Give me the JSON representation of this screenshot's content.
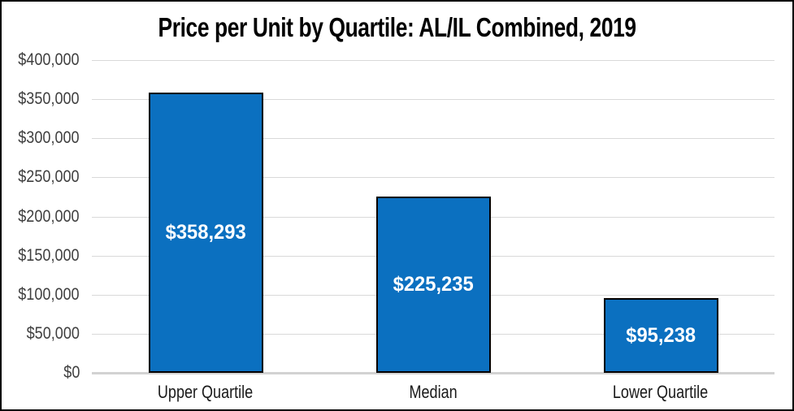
{
  "chart_data": {
    "type": "bar",
    "title": "Price per Unit by Quartile: AL/IL Combined, 2019",
    "categories": [
      "Upper Quartile",
      "Median",
      "Lower Quartile"
    ],
    "values": [
      358293,
      225235,
      95238
    ],
    "data_labels": [
      "$358,293",
      "$225,235",
      "$95,238"
    ],
    "xlabel": "",
    "ylabel": "",
    "ylim": [
      0,
      400000
    ],
    "y_tick_interval": 50000,
    "y_tick_labels_top_to_bottom": [
      "$400,000",
      "$350,000",
      "$300,000",
      "$250,000",
      "$200,000",
      "$150,000",
      "$100,000",
      "$50,000",
      "$0"
    ],
    "grid": true,
    "legend_position": "none",
    "colors": {
      "bar_fill": "#0B70C0",
      "bar_border": "#000000",
      "data_label_text": "#FFFFFF",
      "gridline": "#D9D9D9",
      "axis_line": "#D2D2D2",
      "tick_label_text": "#3F3F3F",
      "category_label_text": "#1A1A1A",
      "title_text": "#000000",
      "background": "#FFFFFF",
      "frame_border": "#000000"
    }
  }
}
